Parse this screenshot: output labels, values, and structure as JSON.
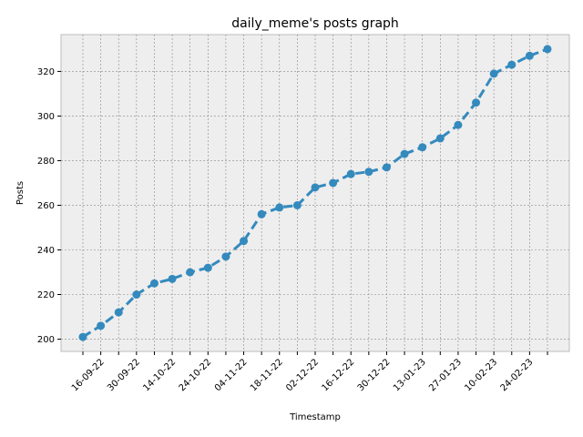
{
  "chart_data": {
    "type": "line",
    "title": "daily_meme's posts graph",
    "x_label": "Timestamp",
    "y_label": "Posts",
    "categories": [
      null,
      "16-09-22",
      null,
      "30-09-22",
      null,
      "14-10-22",
      null,
      "24-10-22",
      null,
      "04-11-22",
      null,
      "18-11-22",
      null,
      "02-12-22",
      null,
      "16-12-22",
      null,
      "30-12-22",
      null,
      "13-01-23",
      null,
      "27-01-23",
      null,
      "10-02-23",
      null,
      "24-02-23",
      null
    ],
    "series": [
      {
        "name": "Posts",
        "color": "#348ABD",
        "values": [
          201,
          206,
          212,
          220,
          225,
          227,
          230,
          232,
          237,
          244,
          256,
          259,
          260,
          268,
          270,
          274,
          275,
          277,
          283,
          286,
          290,
          296,
          306,
          319,
          323,
          327,
          330
        ]
      }
    ],
    "ylim": [
      194.5,
      336.5
    ],
    "yticks": [
      200,
      220,
      240,
      260,
      280,
      300,
      320
    ],
    "grid": true
  }
}
